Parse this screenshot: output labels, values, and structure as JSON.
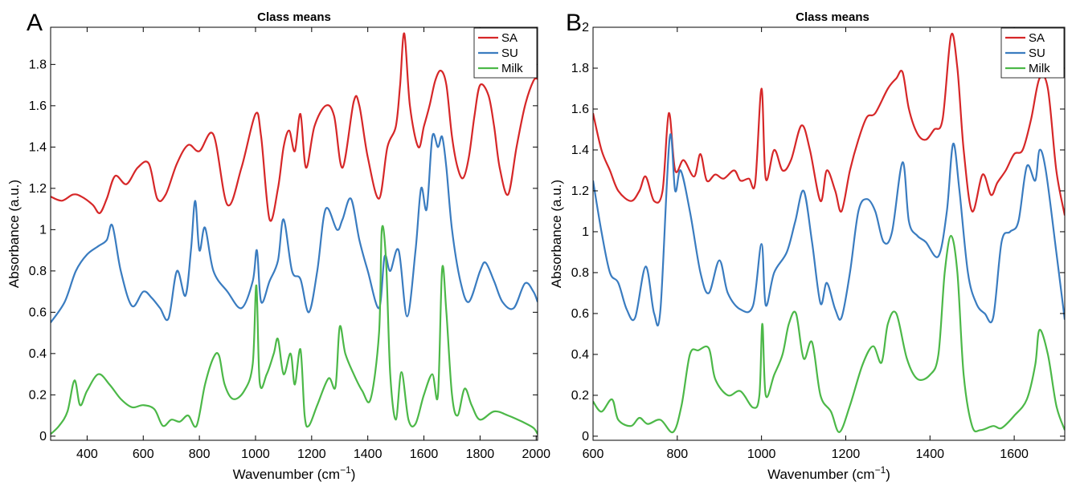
{
  "chart_data": [
    {
      "type": "line",
      "panel_label": "A",
      "title": "Class means",
      "xlabel": "Wavenumber (cm",
      "xlabel_sup": "−1",
      "xlabel_end": ")",
      "ylabel": "Absorbance (a.u.)",
      "xlim": [
        270,
        2005
      ],
      "ylim": [
        -0.02,
        1.98
      ],
      "xticks": [
        400,
        600,
        800,
        1000,
        1200,
        1400,
        1600,
        1800,
        2000
      ],
      "xtick_labels": [
        "400",
        "600",
        "800",
        "1000",
        "1200",
        "1400",
        "1600",
        "1800",
        "2000"
      ],
      "yticks": [
        0,
        0.2,
        0.4,
        0.6,
        0.8,
        1.0,
        1.2,
        1.4,
        1.6,
        1.8
      ],
      "ytick_labels": [
        "0",
        "0.2",
        "0.4",
        "0.6",
        "0.8",
        "1",
        "1.2",
        "1.4",
        "1.6",
        "1.8"
      ],
      "grid": false,
      "legend_position": "top-right",
      "series": [
        {
          "name": "SA",
          "color": "#d62728",
          "x": [
            270,
            310,
            350,
            380,
            420,
            445,
            470,
            500,
            540,
            580,
            620,
            650,
            680,
            720,
            760,
            800,
            850,
            900,
            950,
            1000,
            1020,
            1050,
            1080,
            1100,
            1120,
            1140,
            1160,
            1180,
            1210,
            1250,
            1280,
            1310,
            1350,
            1370,
            1400,
            1440,
            1470,
            1500,
            1515,
            1530,
            1550,
            1580,
            1600,
            1620,
            1640,
            1660,
            1680,
            1700,
            1720,
            1740,
            1760,
            1780,
            1800,
            1830,
            1850,
            1870,
            1900,
            1930,
            1960,
            1990,
            2005
          ],
          "y": [
            1.16,
            1.14,
            1.17,
            1.16,
            1.12,
            1.08,
            1.15,
            1.26,
            1.22,
            1.3,
            1.32,
            1.15,
            1.17,
            1.32,
            1.41,
            1.38,
            1.46,
            1.12,
            1.3,
            1.56,
            1.45,
            1.05,
            1.2,
            1.4,
            1.48,
            1.38,
            1.56,
            1.3,
            1.5,
            1.6,
            1.55,
            1.3,
            1.62,
            1.6,
            1.35,
            1.15,
            1.4,
            1.5,
            1.7,
            1.95,
            1.6,
            1.4,
            1.5,
            1.6,
            1.72,
            1.77,
            1.7,
            1.45,
            1.3,
            1.25,
            1.35,
            1.55,
            1.7,
            1.65,
            1.5,
            1.3,
            1.17,
            1.4,
            1.6,
            1.72,
            1.73
          ]
        },
        {
          "name": "SU",
          "color": "#3a7cc0",
          "x": [
            270,
            320,
            360,
            400,
            440,
            470,
            490,
            520,
            560,
            600,
            630,
            660,
            690,
            720,
            750,
            770,
            785,
            800,
            820,
            850,
            900,
            950,
            990,
            1005,
            1020,
            1050,
            1080,
            1100,
            1130,
            1160,
            1190,
            1220,
            1250,
            1290,
            1310,
            1340,
            1370,
            1400,
            1440,
            1460,
            1480,
            1510,
            1540,
            1570,
            1590,
            1610,
            1630,
            1650,
            1665,
            1680,
            1700,
            1730,
            1760,
            1800,
            1820,
            1850,
            1880,
            1920,
            1960,
            1990,
            2005
          ],
          "y": [
            0.55,
            0.65,
            0.8,
            0.88,
            0.92,
            0.95,
            1.02,
            0.8,
            0.63,
            0.7,
            0.67,
            0.62,
            0.57,
            0.8,
            0.68,
            0.9,
            1.14,
            0.9,
            1.01,
            0.8,
            0.7,
            0.62,
            0.75,
            0.9,
            0.65,
            0.75,
            0.85,
            1.05,
            0.8,
            0.76,
            0.6,
            0.8,
            1.1,
            1.0,
            1.05,
            1.15,
            0.95,
            0.8,
            0.62,
            0.87,
            0.8,
            0.9,
            0.58,
            0.9,
            1.2,
            1.1,
            1.45,
            1.4,
            1.45,
            1.3,
            1.0,
            0.75,
            0.65,
            0.8,
            0.84,
            0.75,
            0.65,
            0.62,
            0.74,
            0.7,
            0.65
          ]
        },
        {
          "name": "Milk",
          "color": "#4cb848",
          "x": [
            270,
            300,
            330,
            355,
            375,
            400,
            440,
            480,
            520,
            560,
            600,
            640,
            670,
            700,
            730,
            760,
            790,
            820,
            850,
            870,
            890,
            920,
            960,
            990,
            1003,
            1015,
            1040,
            1065,
            1080,
            1100,
            1125,
            1140,
            1160,
            1175,
            1190,
            1220,
            1260,
            1285,
            1300,
            1320,
            1350,
            1380,
            1410,
            1440,
            1450,
            1465,
            1480,
            1500,
            1520,
            1545,
            1570,
            1600,
            1630,
            1650,
            1665,
            1680,
            1700,
            1720,
            1745,
            1770,
            1800,
            1850,
            1900,
            1950,
            1990,
            2005
          ],
          "y": [
            0.01,
            0.05,
            0.12,
            0.27,
            0.15,
            0.22,
            0.3,
            0.25,
            0.18,
            0.14,
            0.15,
            0.13,
            0.05,
            0.08,
            0.07,
            0.1,
            0.05,
            0.25,
            0.38,
            0.39,
            0.25,
            0.18,
            0.22,
            0.35,
            0.73,
            0.26,
            0.3,
            0.4,
            0.47,
            0.3,
            0.4,
            0.25,
            0.42,
            0.1,
            0.05,
            0.15,
            0.28,
            0.24,
            0.53,
            0.4,
            0.3,
            0.22,
            0.18,
            0.5,
            1.0,
            0.85,
            0.3,
            0.08,
            0.31,
            0.08,
            0.06,
            0.2,
            0.3,
            0.2,
            0.81,
            0.6,
            0.2,
            0.1,
            0.23,
            0.15,
            0.08,
            0.12,
            0.1,
            0.07,
            0.04,
            0.01
          ]
        }
      ]
    },
    {
      "type": "line",
      "panel_label": "B",
      "title": "Class means",
      "xlabel": "Wavenumber (cm",
      "xlabel_sup": "−1",
      "xlabel_end": ")",
      "ylabel": "Absorbance (a.u.)",
      "xlim": [
        600,
        1720
      ],
      "ylim": [
        -0.02,
        2.0
      ],
      "xticks": [
        600,
        800,
        1000,
        1200,
        1400,
        1600
      ],
      "xtick_labels": [
        "600",
        "800",
        "1000",
        "1200",
        "1400",
        "1600"
      ],
      "yticks": [
        0,
        0.2,
        0.4,
        0.6,
        0.8,
        1.0,
        1.2,
        1.4,
        1.6,
        1.8,
        2.0
      ],
      "ytick_labels": [
        "0",
        "0.2",
        "0.4",
        "0.6",
        "0.8",
        "1",
        "1.2",
        "1.4",
        "1.6",
        "1.8",
        "2"
      ],
      "grid": false,
      "legend_position": "top-right",
      "series": [
        {
          "name": "SA",
          "color": "#d62728",
          "x": [
            600,
            620,
            640,
            660,
            690,
            710,
            725,
            745,
            765,
            780,
            795,
            815,
            840,
            855,
            870,
            890,
            910,
            935,
            950,
            970,
            985,
            1000,
            1010,
            1030,
            1050,
            1070,
            1095,
            1115,
            1140,
            1155,
            1175,
            1190,
            1210,
            1230,
            1250,
            1270,
            1300,
            1320,
            1335,
            1350,
            1370,
            1390,
            1410,
            1430,
            1450,
            1465,
            1480,
            1500,
            1525,
            1545,
            1560,
            1580,
            1600,
            1620,
            1640,
            1660,
            1680,
            1700,
            1720
          ],
          "y": [
            1.58,
            1.4,
            1.3,
            1.2,
            1.15,
            1.2,
            1.27,
            1.15,
            1.2,
            1.58,
            1.3,
            1.35,
            1.27,
            1.38,
            1.25,
            1.28,
            1.26,
            1.3,
            1.25,
            1.26,
            1.24,
            1.7,
            1.26,
            1.4,
            1.3,
            1.35,
            1.52,
            1.4,
            1.15,
            1.3,
            1.2,
            1.1,
            1.3,
            1.45,
            1.56,
            1.58,
            1.7,
            1.75,
            1.78,
            1.6,
            1.48,
            1.45,
            1.5,
            1.55,
            1.96,
            1.8,
            1.4,
            1.1,
            1.28,
            1.18,
            1.24,
            1.3,
            1.38,
            1.4,
            1.55,
            1.75,
            1.7,
            1.3,
            1.08
          ]
        },
        {
          "name": "SU",
          "color": "#3a7cc0",
          "x": [
            600,
            620,
            640,
            660,
            680,
            700,
            725,
            745,
            760,
            782,
            795,
            808,
            830,
            855,
            875,
            900,
            920,
            950,
            980,
            1000,
            1010,
            1030,
            1060,
            1080,
            1100,
            1120,
            1140,
            1155,
            1175,
            1190,
            1210,
            1230,
            1250,
            1270,
            1290,
            1310,
            1335,
            1350,
            1370,
            1390,
            1420,
            1440,
            1455,
            1470,
            1490,
            1510,
            1530,
            1550,
            1570,
            1590,
            1610,
            1630,
            1650,
            1660,
            1675,
            1700,
            1720
          ],
          "y": [
            1.25,
            1.0,
            0.8,
            0.75,
            0.62,
            0.58,
            0.83,
            0.6,
            0.62,
            1.46,
            1.2,
            1.3,
            1.1,
            0.8,
            0.7,
            0.86,
            0.7,
            0.62,
            0.64,
            0.94,
            0.64,
            0.8,
            0.9,
            1.05,
            1.2,
            0.95,
            0.65,
            0.75,
            0.62,
            0.58,
            0.8,
            1.1,
            1.16,
            1.1,
            0.95,
            1.0,
            1.34,
            1.05,
            0.98,
            0.95,
            0.88,
            1.1,
            1.43,
            1.2,
            0.8,
            0.65,
            0.6,
            0.58,
            0.95,
            1.0,
            1.05,
            1.32,
            1.25,
            1.4,
            1.3,
            0.9,
            0.57
          ]
        },
        {
          "name": "Milk",
          "color": "#4cb848",
          "x": [
            600,
            620,
            645,
            660,
            690,
            710,
            730,
            760,
            790,
            810,
            830,
            850,
            875,
            890,
            920,
            950,
            980,
            995,
            1002,
            1010,
            1030,
            1050,
            1065,
            1082,
            1100,
            1120,
            1140,
            1165,
            1185,
            1210,
            1240,
            1265,
            1285,
            1300,
            1320,
            1345,
            1370,
            1400,
            1420,
            1435,
            1450,
            1465,
            1480,
            1500,
            1520,
            1550,
            1570,
            1600,
            1630,
            1650,
            1660,
            1680,
            1700,
            1720
          ],
          "y": [
            0.17,
            0.12,
            0.18,
            0.08,
            0.05,
            0.09,
            0.06,
            0.08,
            0.02,
            0.15,
            0.4,
            0.42,
            0.43,
            0.28,
            0.2,
            0.22,
            0.14,
            0.2,
            0.55,
            0.2,
            0.3,
            0.4,
            0.55,
            0.6,
            0.38,
            0.46,
            0.2,
            0.12,
            0.02,
            0.15,
            0.35,
            0.44,
            0.36,
            0.55,
            0.6,
            0.38,
            0.28,
            0.3,
            0.4,
            0.8,
            0.98,
            0.8,
            0.3,
            0.05,
            0.03,
            0.05,
            0.04,
            0.1,
            0.18,
            0.35,
            0.52,
            0.4,
            0.15,
            0.03
          ]
        }
      ]
    }
  ]
}
